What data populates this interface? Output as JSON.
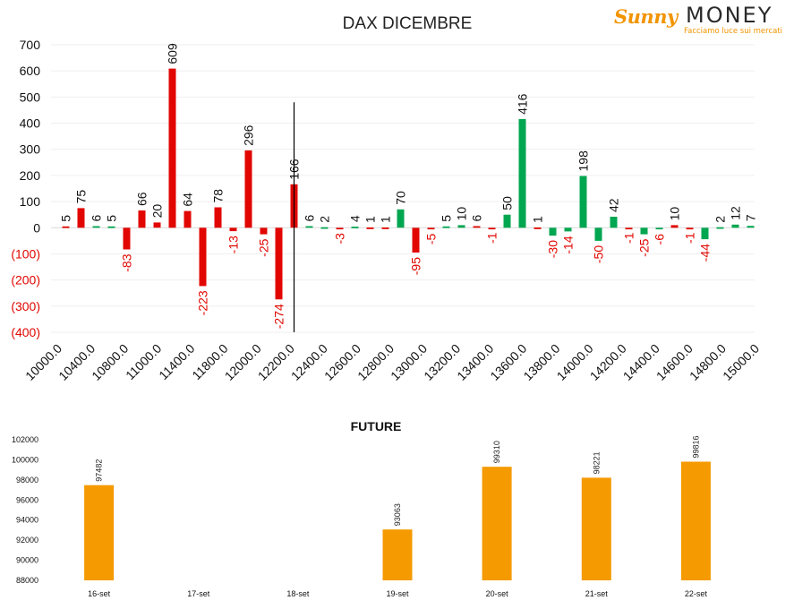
{
  "logo": {
    "brand_script": "Sunny",
    "brand_word": "MONEY",
    "tagline": "Facciamo luce sui mercati"
  },
  "colors": {
    "positive": "#00a650",
    "negative": "#e10600",
    "future_bar": "#f59a00",
    "marker_line": "#000000"
  },
  "chart_data": [
    {
      "type": "bar",
      "title": "DAX DICEMBRE",
      "xlabel": "",
      "ylabel": "",
      "ylim": [
        -400,
        700
      ],
      "y_ticks": [
        "700",
        "600",
        "500",
        "400",
        "300",
        "200",
        "100",
        "0",
        "(100)",
        "(200)",
        "(300)",
        "(400)"
      ],
      "x_ticks": [
        "10000.0",
        "10400.0",
        "10800.0",
        "11000.0",
        "11400.0",
        "11800.0",
        "12000.0",
        "12200.0",
        "12400.0",
        "12600.0",
        "12800.0",
        "13000.0",
        "13200.0",
        "13400.0",
        "13600.0",
        "13800.0",
        "14000.0",
        "14200.0",
        "14400.0",
        "14600.0",
        "14800.0",
        "15000.0"
      ],
      "grid": true,
      "legend": "none",
      "marker_line_label": "",
      "bars": [
        {
          "label": "5",
          "value": 5,
          "color": "red"
        },
        {
          "label": "75",
          "value": 75,
          "color": "red"
        },
        {
          "label": "6",
          "value": 6,
          "color": "green"
        },
        {
          "label": "5",
          "value": 5,
          "color": "green"
        },
        {
          "label": "-83",
          "value": -83,
          "color": "red"
        },
        {
          "label": "66",
          "value": 66,
          "color": "red"
        },
        {
          "label": "20",
          "value": 20,
          "color": "red"
        },
        {
          "label": "609",
          "value": 609,
          "color": "red"
        },
        {
          "label": "64",
          "value": 64,
          "color": "red"
        },
        {
          "label": "-223",
          "value": -223,
          "color": "red"
        },
        {
          "label": "78",
          "value": 78,
          "color": "red"
        },
        {
          "label": "-13",
          "value": -13,
          "color": "red"
        },
        {
          "label": "296",
          "value": 296,
          "color": "red"
        },
        {
          "label": "-25",
          "value": -25,
          "color": "red"
        },
        {
          "label": "-274",
          "value": -274,
          "color": "red"
        },
        {
          "label": "166",
          "value": 166,
          "color": "red"
        },
        {
          "label": "6",
          "value": 6,
          "color": "green"
        },
        {
          "label": "2",
          "value": 2,
          "color": "green"
        },
        {
          "label": "-3",
          "value": -3,
          "color": "red"
        },
        {
          "label": "4",
          "value": 4,
          "color": "green"
        },
        {
          "label": "1",
          "value": 1,
          "color": "red"
        },
        {
          "label": "1",
          "value": 1,
          "color": "red"
        },
        {
          "label": "70",
          "value": 70,
          "color": "green"
        },
        {
          "label": "-95",
          "value": -95,
          "color": "red"
        },
        {
          "label": "-5",
          "value": -5,
          "color": "red"
        },
        {
          "label": "5",
          "value": 5,
          "color": "green"
        },
        {
          "label": "10",
          "value": 10,
          "color": "green"
        },
        {
          "label": "6",
          "value": 6,
          "color": "red"
        },
        {
          "label": "-1",
          "value": -1,
          "color": "red"
        },
        {
          "label": "50",
          "value": 50,
          "color": "green"
        },
        {
          "label": "416",
          "value": 416,
          "color": "green"
        },
        {
          "label": "1",
          "value": 1,
          "color": "red"
        },
        {
          "label": "-30",
          "value": -30,
          "color": "green"
        },
        {
          "label": "-14",
          "value": -14,
          "color": "green"
        },
        {
          "label": "198",
          "value": 198,
          "color": "green"
        },
        {
          "label": "-50",
          "value": -50,
          "color": "green"
        },
        {
          "label": "42",
          "value": 42,
          "color": "green"
        },
        {
          "label": "-1",
          "value": -1,
          "color": "red"
        },
        {
          "label": "-25",
          "value": -25,
          "color": "green"
        },
        {
          "label": "-6",
          "value": -6,
          "color": "green"
        },
        {
          "label": "10",
          "value": 10,
          "color": "red"
        },
        {
          "label": "-1",
          "value": -1,
          "color": "red"
        },
        {
          "label": "-44",
          "value": -44,
          "color": "green"
        },
        {
          "label": "2",
          "value": 2,
          "color": "green"
        },
        {
          "label": "12",
          "value": 12,
          "color": "green"
        },
        {
          "label": "7",
          "value": 7,
          "color": "green"
        }
      ]
    },
    {
      "type": "bar",
      "title": "FUTURE",
      "xlabel": "",
      "ylabel": "",
      "ylim": [
        88000,
        102000
      ],
      "y_ticks": [
        "102000",
        "100000",
        "98000",
        "96000",
        "94000",
        "92000",
        "90000",
        "88000"
      ],
      "categories": [
        "16-set",
        "17-set",
        "18-set",
        "19-set",
        "20-set",
        "21-set",
        "22-set"
      ],
      "values": [
        97482,
        null,
        null,
        93063,
        99310,
        98221,
        99816
      ],
      "value_labels": [
        "97482",
        "",
        "",
        "93063",
        "99310",
        "98221",
        "99816"
      ],
      "grid": false,
      "legend": "none"
    }
  ]
}
